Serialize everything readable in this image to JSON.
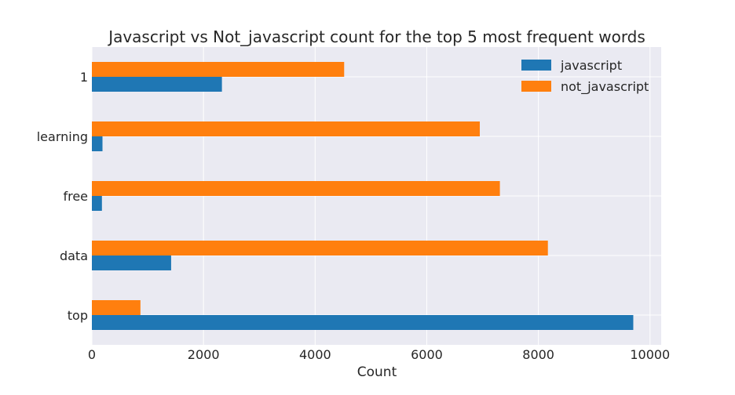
{
  "chart_data": {
    "type": "bar",
    "orientation": "horizontal",
    "title": "Javascript vs Not_javascript count for the top 5 most frequent words",
    "xlabel": "Count",
    "ylabel": "",
    "categories": [
      "top",
      "data",
      "free",
      "learning",
      "1"
    ],
    "series": [
      {
        "name": "javascript",
        "color": "#1f77b4",
        "values": [
          9700,
          1420,
          180,
          190,
          2330
        ]
      },
      {
        "name": "not_javascript",
        "color": "#ff7f0e",
        "values": [
          870,
          8170,
          7310,
          6950,
          4520
        ]
      }
    ],
    "xlim": [
      0,
      10200
    ],
    "xticks": [
      0,
      2000,
      4000,
      6000,
      8000,
      10000
    ],
    "xtick_labels": [
      "0",
      "2000",
      "4000",
      "6000",
      "8000",
      "10000"
    ],
    "grid": true,
    "legend_position": "top-right",
    "background_color": "#eaeaf2",
    "grid_color": "#ffffff"
  }
}
